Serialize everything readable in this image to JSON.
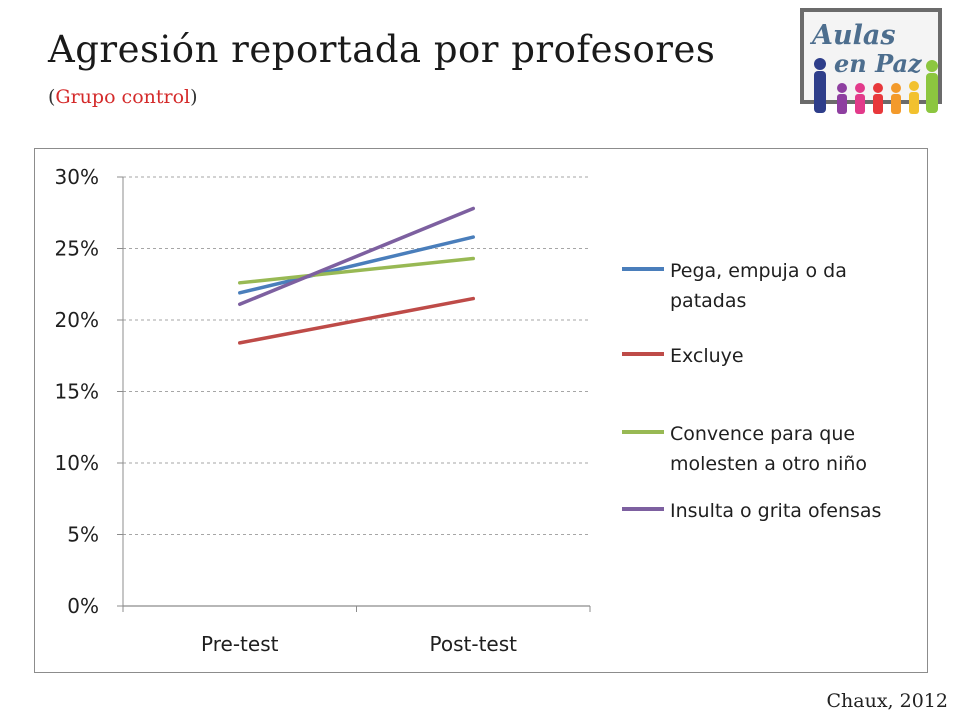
{
  "header": {
    "title": "Agresión reportada por profesores",
    "subtitle_open": "(",
    "subtitle_text": "Grupo control",
    "subtitle_close": ")"
  },
  "logo": {
    "text_line1": "Aulas",
    "text_line2": "en Paz"
  },
  "footer": {
    "credit": "Chaux, 2012"
  },
  "colors": {
    "subtitle_accent": "#d42a2a",
    "grid": "#a6a6a6",
    "axis": "#8c8c8c"
  },
  "chart_data": {
    "type": "line",
    "categories": [
      "Pre-test",
      "Post-test"
    ],
    "ylim": [
      0,
      0.3
    ],
    "yticks": [
      0,
      0.05,
      0.1,
      0.15,
      0.2,
      0.25,
      0.3
    ],
    "ytick_labels": [
      "0%",
      "5%",
      "10%",
      "15%",
      "20%",
      "25%",
      "30%"
    ],
    "grid": "horizontal dashed",
    "legend_position": "right",
    "series": [
      {
        "name": "Pega, empuja o da patadas",
        "color": "#4a7ebb",
        "values": [
          0.219,
          0.258
        ]
      },
      {
        "name": "Excluye",
        "color": "#be4b48",
        "values": [
          0.184,
          0.215
        ]
      },
      {
        "name": "Convence para que molesten a otro niño",
        "color": "#98b954",
        "values": [
          0.226,
          0.243
        ]
      },
      {
        "name": "Insulta o grita ofensas",
        "color": "#7d60a0",
        "values": [
          0.211,
          0.278
        ]
      }
    ]
  }
}
